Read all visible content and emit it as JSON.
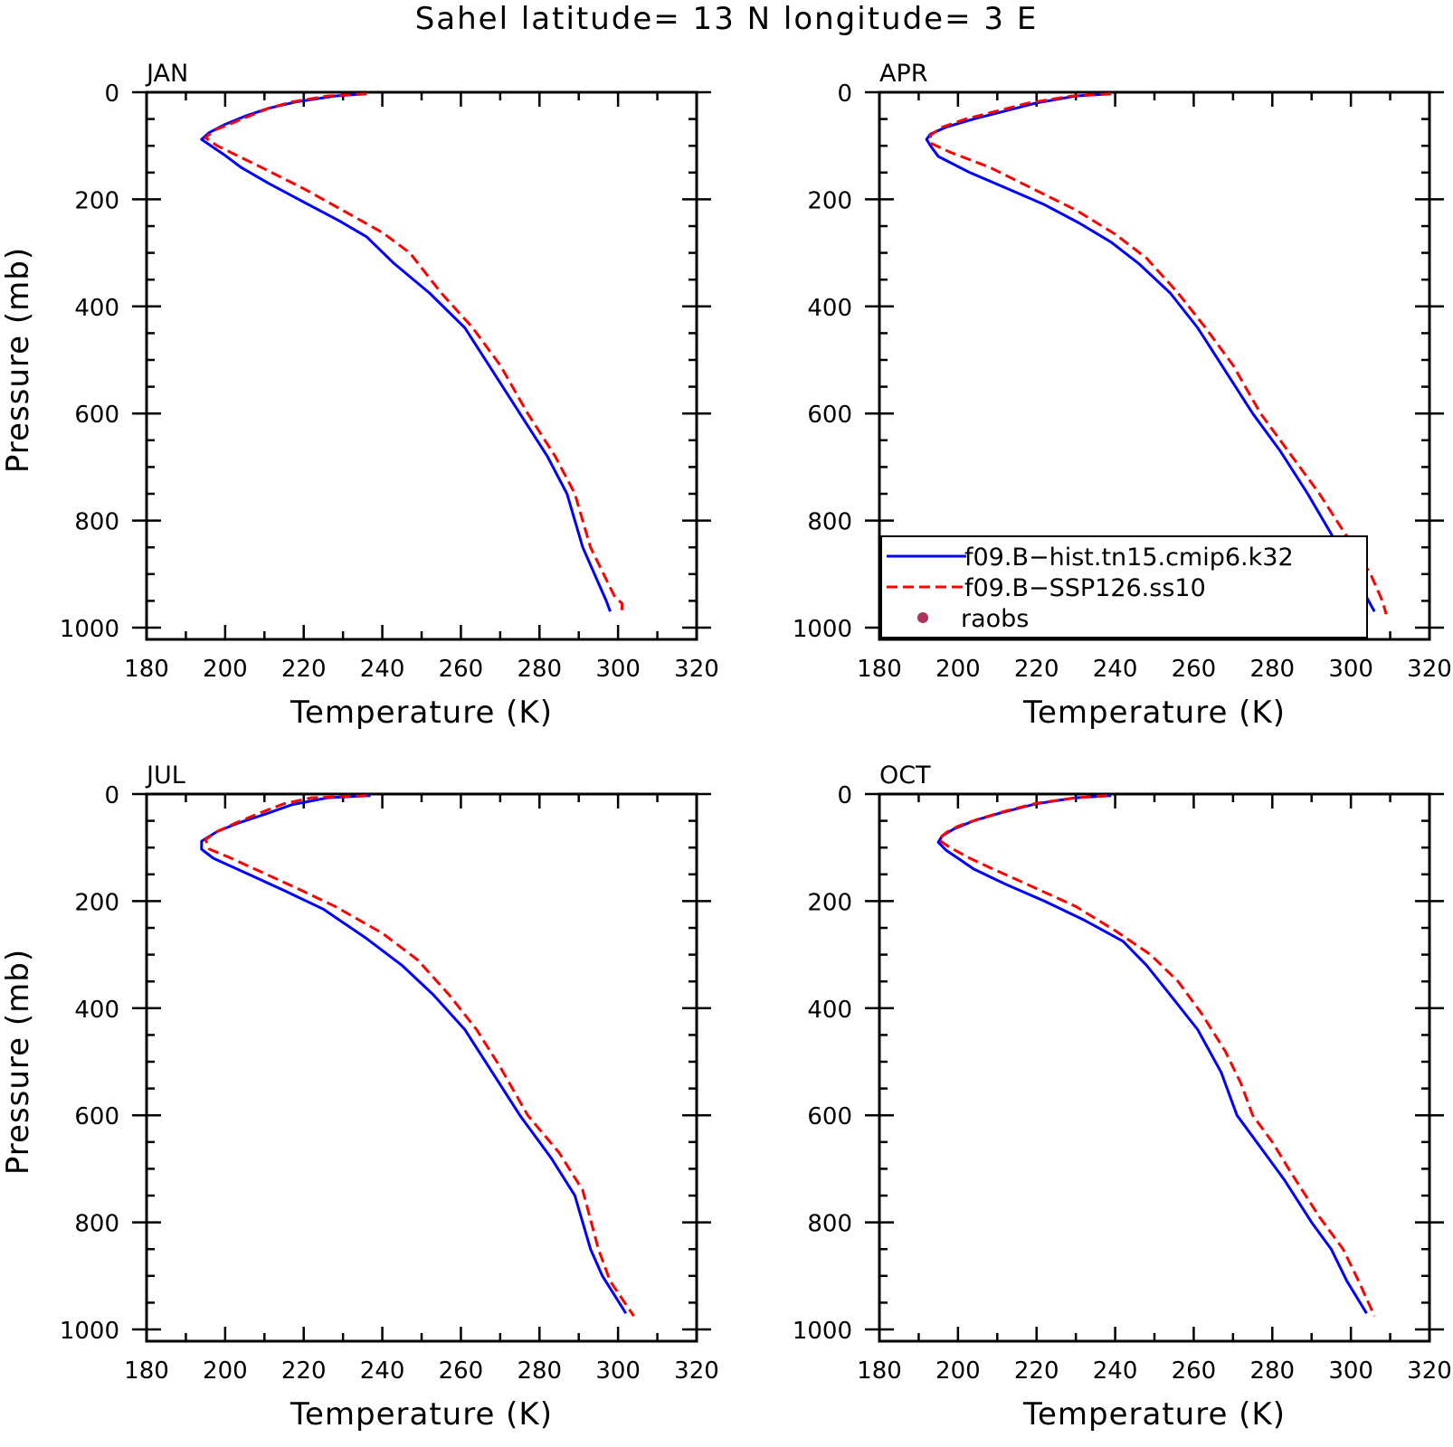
{
  "title": "Sahel  latitude= 13 N longitude= 3 E",
  "colors": {
    "hist": "#0000ff",
    "ssp": "#ff0000",
    "raobs": "#b03060",
    "axis": "#000000"
  },
  "legend": {
    "entries": [
      {
        "label": "f09.B−hist.tn15.cmip6.k32",
        "style": "solid",
        "color": "#0000ff"
      },
      {
        "label": "f09.B−SSP126.ss10",
        "style": "dashed",
        "color": "#ff0000"
      },
      {
        "label": "raobs",
        "style": "marker",
        "color": "#b03060"
      }
    ]
  },
  "chart_data": [
    {
      "type": "line",
      "label": "JAN",
      "xlabel": "Temperature (K)",
      "ylabel": "Pressure (mb)",
      "xlim": [
        180,
        320
      ],
      "ylim": [
        1000,
        0
      ],
      "xticks": [
        "180",
        "200",
        "220",
        "240",
        "260",
        "280",
        "300",
        "320"
      ],
      "yticks": [
        "0",
        "200",
        "400",
        "600",
        "800",
        "1000"
      ],
      "series": [
        {
          "name": "f09.B−hist.tn15.cmip6.k32",
          "points": [
            [
              236,
              3
            ],
            [
              228,
              7
            ],
            [
              218,
              18
            ],
            [
              211,
              30
            ],
            [
              205,
              45
            ],
            [
              200,
              60
            ],
            [
              196,
              75
            ],
            [
              194,
              88
            ],
            [
              197,
              103
            ],
            [
              200,
              118
            ],
            [
              204,
              140
            ],
            [
              211,
              170
            ],
            [
              220,
              205
            ],
            [
              229,
              240
            ],
            [
              236,
              270
            ],
            [
              243,
              320
            ],
            [
              252,
              375
            ],
            [
              261,
              440
            ],
            [
              268,
              520
            ],
            [
              275,
              600
            ],
            [
              282,
              680
            ],
            [
              287,
              750
            ],
            [
              291,
              850
            ],
            [
              297,
              950
            ],
            [
              298,
              970
            ]
          ]
        },
        {
          "name": "f09.B−SSP126.ss10",
          "points": [
            [
              236,
              3
            ],
            [
              226,
              7
            ],
            [
              217,
              18
            ],
            [
              211,
              30
            ],
            [
              206,
              45
            ],
            [
              201,
              60
            ],
            [
              197,
              72
            ],
            [
              195,
              85
            ],
            [
              198,
              100
            ],
            [
              203,
              118
            ],
            [
              210,
              143
            ],
            [
              220,
              180
            ],
            [
              231,
              225
            ],
            [
              240,
              262
            ],
            [
              247,
              300
            ],
            [
              255,
              375
            ],
            [
              263,
              440
            ],
            [
              270,
              510
            ],
            [
              277,
              600
            ],
            [
              284,
              680
            ],
            [
              289,
              750
            ],
            [
              293,
              850
            ],
            [
              299,
              940
            ],
            [
              301,
              955
            ],
            [
              301,
              975
            ]
          ]
        }
      ]
    },
    {
      "type": "line",
      "label": "APR",
      "xlabel": "Temperature (K)",
      "ylabel": "",
      "xlim": [
        180,
        320
      ],
      "ylim": [
        1000,
        0
      ],
      "xticks": [
        "180",
        "200",
        "220",
        "240",
        "260",
        "280",
        "300",
        "320"
      ],
      "yticks": [
        "0",
        "200",
        "400",
        "600",
        "800",
        "1000"
      ],
      "series": [
        {
          "name": "f09.B−hist.tn15.cmip6.k32",
          "points": [
            [
              239,
              3
            ],
            [
              230,
              7
            ],
            [
              220,
              20
            ],
            [
              212,
              35
            ],
            [
              204,
              50
            ],
            [
              197,
              65
            ],
            [
              193,
              78
            ],
            [
              192,
              88
            ],
            [
              193,
              100
            ],
            [
              195,
              120
            ],
            [
              203,
              150
            ],
            [
              211,
              175
            ],
            [
              222,
              210
            ],
            [
              231,
              245
            ],
            [
              239,
              280
            ],
            [
              246,
              320
            ],
            [
              254,
              375
            ],
            [
              261,
              440
            ],
            [
              268,
              520
            ],
            [
              275,
              600
            ],
            [
              282,
              670
            ],
            [
              289,
              750
            ],
            [
              297,
              850
            ],
            [
              303,
              930
            ],
            [
              306,
              970
            ]
          ]
        },
        {
          "name": "f09.B−SSP126.ss10",
          "points": [
            [
              239,
              3
            ],
            [
              229,
              7
            ],
            [
              218,
              20
            ],
            [
              210,
              35
            ],
            [
              202,
              50
            ],
            [
              196,
              65
            ],
            [
              193,
              80
            ],
            [
              193,
              95
            ],
            [
              198,
              112
            ],
            [
              208,
              140
            ],
            [
              219,
              180
            ],
            [
              230,
              220
            ],
            [
              240,
              265
            ],
            [
              248,
              310
            ],
            [
              256,
              375
            ],
            [
              263,
              440
            ],
            [
              270,
              510
            ],
            [
              277,
              600
            ],
            [
              285,
              680
            ],
            [
              292,
              750
            ],
            [
              299,
              830
            ],
            [
              305,
              900
            ],
            [
              308,
              950
            ],
            [
              309,
              975
            ]
          ]
        }
      ]
    },
    {
      "type": "line",
      "label": "JUL",
      "xlabel": "Temperature (K)",
      "ylabel": "Pressure (mb)",
      "xlim": [
        180,
        320
      ],
      "ylim": [
        1000,
        0
      ],
      "xticks": [
        "180",
        "200",
        "220",
        "240",
        "260",
        "280",
        "300",
        "320"
      ],
      "yticks": [
        "0",
        "200",
        "400",
        "600",
        "800",
        "1000"
      ],
      "series": [
        {
          "name": "f09.B−hist.tn15.cmip6.k32",
          "points": [
            [
              237,
              3
            ],
            [
              226,
              7
            ],
            [
              217,
              20
            ],
            [
              210,
              38
            ],
            [
              203,
              55
            ],
            [
              198,
              70
            ],
            [
              194,
              88
            ],
            [
              194,
              103
            ],
            [
              197,
              120
            ],
            [
              206,
              150
            ],
            [
              215,
              180
            ],
            [
              225,
              215
            ],
            [
              236,
              270
            ],
            [
              245,
              320
            ],
            [
              253,
              375
            ],
            [
              261,
              440
            ],
            [
              268,
              520
            ],
            [
              275,
              600
            ],
            [
              283,
              680
            ],
            [
              289,
              750
            ],
            [
              293,
              850
            ],
            [
              296,
              900
            ],
            [
              302,
              970
            ]
          ]
        },
        {
          "name": "f09.B−SSP126.ss10",
          "points": [
            [
              236,
              3
            ],
            [
              222,
              7
            ],
            [
              215,
              18
            ],
            [
              209,
              35
            ],
            [
              203,
              53
            ],
            [
              198,
              70
            ],
            [
              195,
              85
            ],
            [
              196,
              103
            ],
            [
              201,
              118
            ],
            [
              209,
              145
            ],
            [
              218,
              175
            ],
            [
              228,
              210
            ],
            [
              240,
              260
            ],
            [
              249,
              310
            ],
            [
              257,
              375
            ],
            [
              264,
              440
            ],
            [
              270,
              510
            ],
            [
              277,
              600
            ],
            [
              285,
              670
            ],
            [
              291,
              740
            ],
            [
              295,
              850
            ],
            [
              298,
              910
            ],
            [
              304,
              975
            ]
          ]
        }
      ]
    },
    {
      "type": "line",
      "label": "OCT",
      "xlabel": "Temperature (K)",
      "ylabel": "",
      "xlim": [
        180,
        320
      ],
      "ylim": [
        1000,
        0
      ],
      "xticks": [
        "180",
        "200",
        "220",
        "240",
        "260",
        "280",
        "300",
        "320"
      ],
      "yticks": [
        "0",
        "200",
        "400",
        "600",
        "800",
        "1000"
      ],
      "series": [
        {
          "name": "f09.B−hist.tn15.cmip6.k32",
          "points": [
            [
              239,
              3
            ],
            [
              230,
              7
            ],
            [
              220,
              18
            ],
            [
              211,
              35
            ],
            [
              204,
              50
            ],
            [
              199,
              65
            ],
            [
              196,
              78
            ],
            [
              195,
              90
            ],
            [
              197,
              105
            ],
            [
              200,
              120
            ],
            [
              204,
              140
            ],
            [
              212,
              168
            ],
            [
              222,
              200
            ],
            [
              232,
              235
            ],
            [
              242,
              275
            ],
            [
              248,
              320
            ],
            [
              254,
              375
            ],
            [
              261,
              440
            ],
            [
              267,
              520
            ],
            [
              271,
              600
            ],
            [
              277,
              660
            ],
            [
              283,
              720
            ],
            [
              290,
              800
            ],
            [
              295,
              850
            ],
            [
              299,
              910
            ],
            [
              304,
              970
            ]
          ]
        },
        {
          "name": "f09.B−SSP126.ss10",
          "points": [
            [
              238,
              3
            ],
            [
              230,
              7
            ],
            [
              220,
              17
            ],
            [
              212,
              32
            ],
            [
              206,
              45
            ],
            [
              200,
              60
            ],
            [
              197,
              72
            ],
            [
              195,
              85
            ],
            [
              198,
              100
            ],
            [
              203,
              120
            ],
            [
              208,
              137
            ],
            [
              218,
              170
            ],
            [
              230,
              210
            ],
            [
              240,
              255
            ],
            [
              249,
              300
            ],
            [
              256,
              350
            ],
            [
              262,
              410
            ],
            [
              268,
              480
            ],
            [
              272,
              540
            ],
            [
              275,
              600
            ],
            [
              280,
              650
            ],
            [
              285,
              710
            ],
            [
              292,
              790
            ],
            [
              298,
              850
            ],
            [
              302,
              910
            ],
            [
              306,
              975
            ]
          ]
        }
      ]
    }
  ]
}
